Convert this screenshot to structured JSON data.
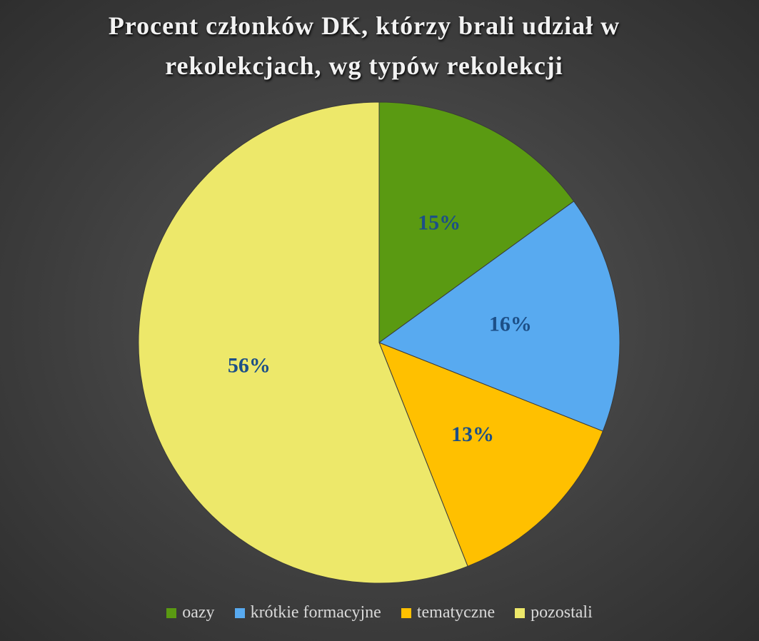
{
  "chart_data": {
    "type": "pie",
    "title": "Procent członków DK, którzy brali udział w rekolekcjach, wg typów rekolekcji",
    "categories": [
      "oazy",
      "krótkie formacyjne",
      "tematyczne",
      "pozostali"
    ],
    "values": [
      15,
      16,
      13,
      56
    ],
    "value_labels": [
      "15%",
      "16%",
      "13%",
      "56%"
    ],
    "colors": [
      "#5a9a12",
      "#58aaf0",
      "#ffc000",
      "#ede86a"
    ],
    "legend": "bottom"
  }
}
